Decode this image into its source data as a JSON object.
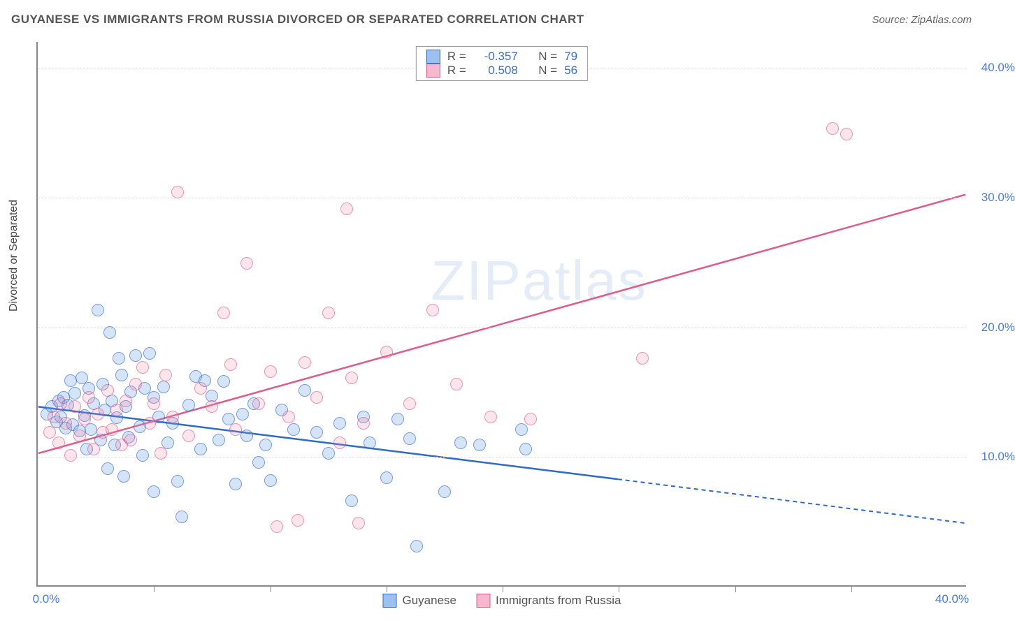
{
  "title": "GUYANESE VS IMMIGRANTS FROM RUSSIA DIVORCED OR SEPARATED CORRELATION CHART",
  "source": "Source: ZipAtlas.com",
  "ylabel": "Divorced or Separated",
  "watermark_bold": "ZIP",
  "watermark_thin": "atlas",
  "chart": {
    "type": "scatter",
    "xlim": [
      0,
      40
    ],
    "ylim": [
      0,
      42
    ],
    "y_ticks": [
      10,
      20,
      30,
      40
    ],
    "y_tick_labels": [
      "10.0%",
      "20.0%",
      "30.0%",
      "40.0%"
    ],
    "x_ticks": [
      0,
      5,
      10,
      15,
      20,
      25,
      30,
      35,
      40
    ],
    "x_tick_labels": {
      "0": "0.0%",
      "40": "40.0%"
    },
    "x_gridlines": [
      5,
      10,
      15,
      20,
      25,
      30,
      35
    ],
    "background_color": "#ffffff",
    "grid_color": "#dddddd",
    "series": [
      {
        "name": "Guyanese",
        "color_fill": "#9ec0ee",
        "color_stroke": "#2e6ac9",
        "R": "-0.357",
        "N": "79",
        "trend": {
          "x1": 0,
          "y1": 13.8,
          "x2": 25,
          "y2": 8.2,
          "dash_to_x": 40,
          "dash_to_y": 4.8
        },
        "points": [
          [
            0.4,
            13.2
          ],
          [
            0.6,
            13.8
          ],
          [
            0.8,
            12.6
          ],
          [
            0.9,
            14.2
          ],
          [
            1.0,
            13.0
          ],
          [
            1.1,
            14.5
          ],
          [
            1.2,
            12.1
          ],
          [
            1.3,
            13.9
          ],
          [
            1.4,
            15.8
          ],
          [
            1.5,
            12.4
          ],
          [
            1.6,
            14.8
          ],
          [
            1.8,
            11.9
          ],
          [
            1.9,
            16.0
          ],
          [
            2.0,
            13.1
          ],
          [
            2.1,
            10.5
          ],
          [
            2.2,
            15.2
          ],
          [
            2.3,
            12.0
          ],
          [
            2.4,
            14.0
          ],
          [
            2.6,
            21.2
          ],
          [
            2.7,
            11.2
          ],
          [
            2.8,
            15.5
          ],
          [
            2.9,
            13.5
          ],
          [
            3.0,
            9.0
          ],
          [
            3.1,
            19.5
          ],
          [
            3.2,
            14.2
          ],
          [
            3.3,
            10.8
          ],
          [
            3.4,
            12.9
          ],
          [
            3.5,
            17.5
          ],
          [
            3.6,
            16.2
          ],
          [
            3.7,
            8.4
          ],
          [
            3.8,
            13.8
          ],
          [
            3.9,
            11.4
          ],
          [
            4.0,
            14.9
          ],
          [
            4.2,
            17.7
          ],
          [
            4.4,
            12.2
          ],
          [
            4.5,
            10.0
          ],
          [
            4.6,
            15.2
          ],
          [
            4.8,
            17.9
          ],
          [
            5.0,
            7.2
          ],
          [
            5.0,
            14.5
          ],
          [
            5.2,
            13.0
          ],
          [
            5.4,
            15.3
          ],
          [
            5.6,
            11.0
          ],
          [
            5.8,
            12.5
          ],
          [
            6.0,
            8.0
          ],
          [
            6.2,
            5.3
          ],
          [
            6.5,
            13.9
          ],
          [
            6.8,
            16.1
          ],
          [
            7.0,
            10.5
          ],
          [
            7.2,
            15.8
          ],
          [
            7.5,
            14.6
          ],
          [
            7.8,
            11.2
          ],
          [
            8.0,
            15.7
          ],
          [
            8.2,
            12.8
          ],
          [
            8.5,
            7.8
          ],
          [
            8.8,
            13.2
          ],
          [
            9.0,
            11.5
          ],
          [
            9.3,
            14.0
          ],
          [
            9.5,
            9.5
          ],
          [
            9.8,
            10.8
          ],
          [
            10.0,
            8.1
          ],
          [
            10.5,
            13.5
          ],
          [
            11.0,
            12.0
          ],
          [
            11.5,
            15.0
          ],
          [
            12.0,
            11.8
          ],
          [
            12.5,
            10.2
          ],
          [
            13.0,
            12.5
          ],
          [
            13.5,
            6.5
          ],
          [
            14.0,
            13.0
          ],
          [
            14.3,
            11.0
          ],
          [
            15.0,
            8.3
          ],
          [
            15.5,
            12.8
          ],
          [
            16.0,
            11.3
          ],
          [
            16.3,
            3.0
          ],
          [
            17.5,
            7.2
          ],
          [
            18.2,
            11.0
          ],
          [
            19.0,
            10.8
          ],
          [
            20.8,
            12.0
          ],
          [
            21.0,
            10.5
          ]
        ]
      },
      {
        "name": "Immigrants from Russia",
        "color_fill": "#f5b8cd",
        "color_stroke": "#e15b8a",
        "R": "0.508",
        "N": "56",
        "trend": {
          "x1": 0,
          "y1": 10.2,
          "x2": 40,
          "y2": 30.2
        },
        "points": [
          [
            0.5,
            11.8
          ],
          [
            0.7,
            13.0
          ],
          [
            0.9,
            11.0
          ],
          [
            1.0,
            14.0
          ],
          [
            1.2,
            12.5
          ],
          [
            1.4,
            10.0
          ],
          [
            1.6,
            13.8
          ],
          [
            1.8,
            11.5
          ],
          [
            2.0,
            12.8
          ],
          [
            2.2,
            14.5
          ],
          [
            2.4,
            10.5
          ],
          [
            2.6,
            13.2
          ],
          [
            2.8,
            11.8
          ],
          [
            3.0,
            15.0
          ],
          [
            3.2,
            12.0
          ],
          [
            3.4,
            13.5
          ],
          [
            3.6,
            10.8
          ],
          [
            3.8,
            14.2
          ],
          [
            4.0,
            11.2
          ],
          [
            4.2,
            15.5
          ],
          [
            4.5,
            16.8
          ],
          [
            4.8,
            12.5
          ],
          [
            5.0,
            14.0
          ],
          [
            5.3,
            10.2
          ],
          [
            5.5,
            16.2
          ],
          [
            5.8,
            13.0
          ],
          [
            6.0,
            30.3
          ],
          [
            6.5,
            11.5
          ],
          [
            7.0,
            15.2
          ],
          [
            7.5,
            13.8
          ],
          [
            8.0,
            21.0
          ],
          [
            8.3,
            17.0
          ],
          [
            8.5,
            12.0
          ],
          [
            9.0,
            24.8
          ],
          [
            9.5,
            14.0
          ],
          [
            10.0,
            16.5
          ],
          [
            10.3,
            4.5
          ],
          [
            10.8,
            13.0
          ],
          [
            11.2,
            5.0
          ],
          [
            11.5,
            17.2
          ],
          [
            12.0,
            14.5
          ],
          [
            12.5,
            21.0
          ],
          [
            13.0,
            11.0
          ],
          [
            13.3,
            29.0
          ],
          [
            13.5,
            16.0
          ],
          [
            13.8,
            4.8
          ],
          [
            14.0,
            12.5
          ],
          [
            15.0,
            18.0
          ],
          [
            16.0,
            14.0
          ],
          [
            17.0,
            21.2
          ],
          [
            18.0,
            15.5
          ],
          [
            19.5,
            13.0
          ],
          [
            21.2,
            12.8
          ],
          [
            26.0,
            17.5
          ],
          [
            34.2,
            35.2
          ],
          [
            34.8,
            34.8
          ]
        ]
      }
    ]
  },
  "legend_top_labels": {
    "R": "R =",
    "N": "N ="
  },
  "legend_bottom": [
    {
      "label": "Guyanese",
      "fill": "#9ec0ee",
      "stroke": "#2e6ac9"
    },
    {
      "label": "Immigrants from Russia",
      "fill": "#f5b8cd",
      "stroke": "#e15b8a"
    }
  ]
}
